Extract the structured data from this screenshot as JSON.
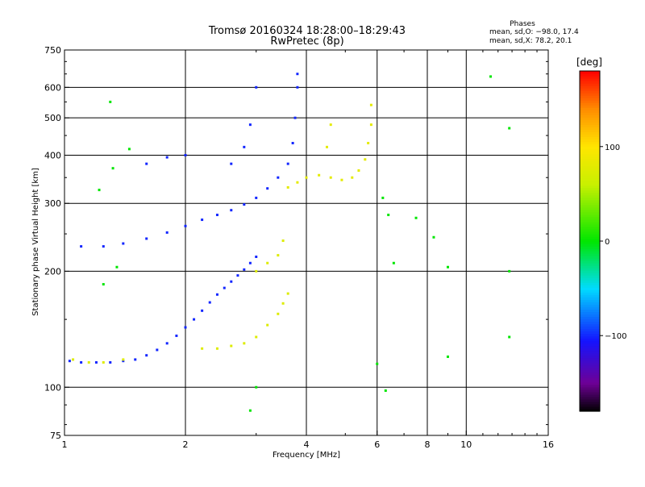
{
  "chart_data": {
    "type": "scatter",
    "title": "Tromsø 20160324 18:28:00–18:29:43",
    "subtitle": "RwPretec (8p)",
    "xlabel": "Frequency [MHz]",
    "ylabel": "Stationary phase Virtual Height [km]",
    "x_scale": "log",
    "y_scale": "log",
    "xlim": [
      1,
      16
    ],
    "ylim": [
      75,
      750
    ],
    "x_ticks": [
      1,
      2,
      4,
      6,
      8,
      10,
      16
    ],
    "x_ticklabels": [
      "1",
      "2",
      "4",
      "6",
      "8",
      "10",
      "16"
    ],
    "x_grid_lines": [
      2,
      4,
      6,
      8,
      10
    ],
    "y_ticks": [
      75,
      100,
      200,
      300,
      400,
      500,
      600,
      750
    ],
    "y_ticklabels": [
      "75",
      "100",
      "200",
      "300",
      "400",
      "500",
      "600",
      "750"
    ],
    "y_grid_lines": [
      100,
      200,
      300,
      400,
      500,
      600
    ],
    "grid": true,
    "stats": {
      "header": "Phases",
      "o_line": "mean, sd,O: −98.0, 17.4",
      "x_line": "mean, sd,X:  78.2, 20.1"
    },
    "colorbar": {
      "label": "[deg]",
      "range": [
        -180,
        180
      ],
      "ticks": [
        100,
        0,
        -100
      ],
      "ticklabels": [
        "100",
        "0",
        "−100"
      ],
      "colormap": "rainbow (black–purple–blue–cyan–green–yellow–orange–red)"
    },
    "series": [
      {
        "name": "",
        "description_ref": "lower O-mode trace (blue, phase ≈ −100°)",
        "color_phase": -100,
        "points": [
          [
            1.03,
            117
          ],
          [
            1.1,
            116
          ],
          [
            1.2,
            116
          ],
          [
            1.3,
            116
          ],
          [
            1.4,
            117
          ],
          [
            1.5,
            118
          ],
          [
            1.6,
            121
          ],
          [
            1.7,
            125
          ],
          [
            1.8,
            130
          ],
          [
            1.9,
            136
          ],
          [
            2.0,
            143
          ],
          [
            2.1,
            150
          ],
          [
            2.2,
            158
          ],
          [
            2.3,
            166
          ],
          [
            2.4,
            174
          ],
          [
            2.5,
            181
          ],
          [
            2.6,
            188
          ],
          [
            2.7,
            195
          ],
          [
            2.8,
            202
          ],
          [
            2.9,
            210
          ],
          [
            3.0,
            218
          ]
        ]
      },
      {
        "name": "",
        "description_ref": "lower X-mode trace (yellow/green, phase ≈ +80°)",
        "color_phase": 75,
        "points": [
          [
            1.05,
            118
          ],
          [
            1.15,
            116
          ],
          [
            1.25,
            116
          ],
          [
            1.4,
            118
          ],
          [
            2.2,
            126
          ],
          [
            2.4,
            126
          ],
          [
            2.6,
            128
          ],
          [
            2.8,
            130
          ],
          [
            3.0,
            135
          ],
          [
            3.2,
            145
          ],
          [
            3.4,
            155
          ],
          [
            3.5,
            165
          ],
          [
            3.6,
            175
          ],
          [
            3.0,
            200
          ],
          [
            3.2,
            210
          ],
          [
            3.4,
            220
          ],
          [
            3.5,
            240
          ]
        ]
      },
      {
        "name": "",
        "description_ref": "upper O-mode trace (blue, phase ≈ −100°)",
        "color_phase": -100,
        "points": [
          [
            1.1,
            232
          ],
          [
            1.25,
            232
          ],
          [
            1.4,
            236
          ],
          [
            1.6,
            243
          ],
          [
            1.8,
            252
          ],
          [
            2.0,
            262
          ],
          [
            2.2,
            272
          ],
          [
            2.4,
            280
          ],
          [
            2.6,
            288
          ],
          [
            2.8,
            298
          ],
          [
            3.0,
            310
          ],
          [
            3.2,
            328
          ],
          [
            3.4,
            350
          ],
          [
            3.6,
            380
          ],
          [
            3.7,
            430
          ],
          [
            3.75,
            500
          ],
          [
            3.8,
            600
          ],
          [
            3.8,
            650
          ],
          [
            2.6,
            380
          ],
          [
            2.8,
            420
          ],
          [
            2.9,
            480
          ],
          [
            3.0,
            600
          ],
          [
            1.6,
            380
          ],
          [
            1.8,
            395
          ],
          [
            2.0,
            400
          ]
        ]
      },
      {
        "name": "",
        "description_ref": "upper X-mode trace (yellow/orange, phase ≈ +80°)",
        "color_phase": 80,
        "points": [
          [
            3.6,
            330
          ],
          [
            3.8,
            340
          ],
          [
            4.0,
            350
          ],
          [
            4.3,
            355
          ],
          [
            4.6,
            350
          ],
          [
            4.9,
            345
          ],
          [
            5.2,
            350
          ],
          [
            5.4,
            365
          ],
          [
            5.6,
            390
          ],
          [
            5.7,
            430
          ],
          [
            5.8,
            480
          ],
          [
            5.8,
            540
          ],
          [
            4.5,
            420
          ],
          [
            4.6,
            480
          ]
        ]
      },
      {
        "name": "",
        "description_ref": "scattered isolated points",
        "color_phase": 0,
        "points": [
          [
            1.3,
            550
          ],
          [
            1.32,
            370
          ],
          [
            1.22,
            325
          ],
          [
            1.25,
            185
          ],
          [
            1.35,
            205
          ],
          [
            1.45,
            415
          ],
          [
            6.2,
            310
          ],
          [
            6.4,
            280
          ],
          [
            6.6,
            210
          ],
          [
            7.5,
            275
          ],
          [
            8.3,
            245
          ],
          [
            9.0,
            205
          ],
          [
            11.5,
            640
          ],
          [
            12.8,
            470
          ],
          [
            12.8,
            135
          ],
          [
            12.8,
            200
          ],
          [
            6.0,
            115
          ],
          [
            6.3,
            98
          ],
          [
            9.0,
            120
          ],
          [
            2.9,
            87
          ],
          [
            3.0,
            100
          ]
        ]
      }
    ]
  }
}
